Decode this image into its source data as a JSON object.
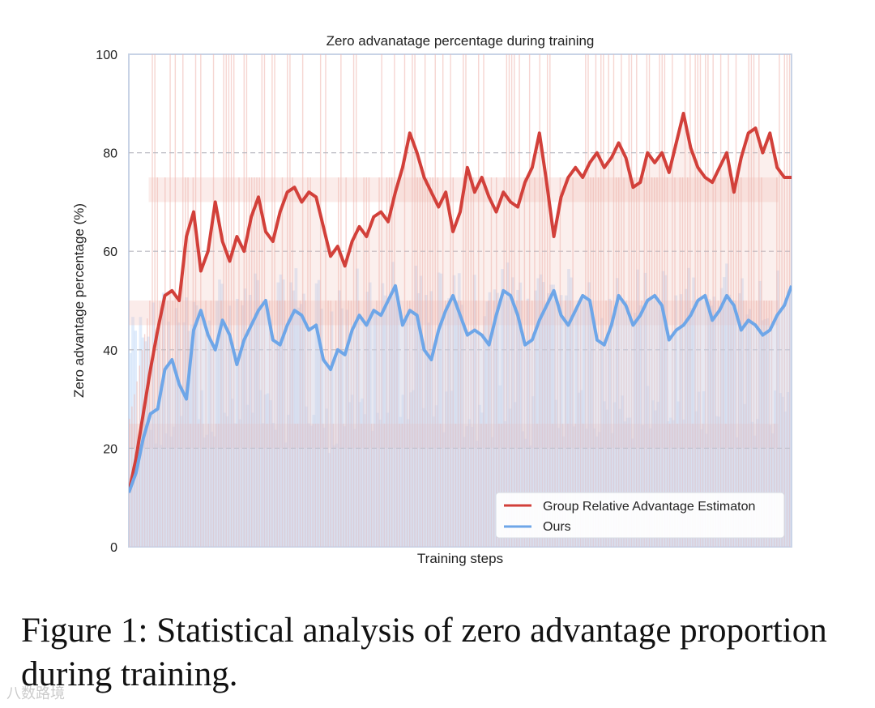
{
  "chart_data": {
    "type": "line",
    "title": "Zero advanatage percentage during training",
    "xlabel": "Training steps",
    "ylabel": "Zero advantage percentage (%)",
    "ylim": [
      0,
      100
    ],
    "yticks": [
      0,
      20,
      40,
      60,
      80,
      100
    ],
    "grid": "horizontal dashed",
    "legend_position": "bottom-right",
    "series": [
      {
        "name": "Group Relative Advantage Estimaton",
        "color": "#d2403a",
        "raw_color": "#efb4ad",
        "smoothed": [
          11,
          18,
          27,
          36,
          44,
          51,
          52,
          50,
          63,
          68,
          56,
          60,
          70,
          62,
          58,
          63,
          60,
          67,
          71,
          64,
          62,
          68,
          72,
          73,
          70,
          72,
          71,
          65,
          59,
          61,
          57,
          62,
          65,
          63,
          67,
          68,
          66,
          72,
          77,
          84,
          80,
          75,
          72,
          69,
          72,
          64,
          68,
          77,
          72,
          75,
          71,
          68,
          72,
          70,
          69,
          74,
          77,
          84,
          74,
          63,
          71,
          75,
          77,
          75,
          78,
          80,
          77,
          79,
          82,
          79,
          73,
          74,
          80,
          78,
          80,
          76,
          82,
          88,
          81,
          77,
          75,
          74,
          77,
          80,
          72,
          79,
          84,
          85,
          80,
          84,
          77,
          75,
          75
        ],
        "raw_levels": [
          25,
          50,
          75,
          100
        ]
      },
      {
        "name": "Ours",
        "color": "#6ea6e8",
        "raw_color": "#c6dcf8",
        "smoothed": [
          11,
          15,
          22,
          27,
          28,
          36,
          38,
          33,
          30,
          44,
          48,
          43,
          40,
          46,
          43,
          37,
          42,
          45,
          48,
          50,
          42,
          41,
          45,
          48,
          47,
          44,
          45,
          38,
          36,
          40,
          39,
          44,
          47,
          45,
          48,
          47,
          50,
          53,
          45,
          48,
          47,
          40,
          38,
          44,
          48,
          51,
          47,
          43,
          44,
          43,
          41,
          47,
          52,
          51,
          47,
          41,
          42,
          46,
          49,
          52,
          47,
          45,
          48,
          51,
          50,
          42,
          41,
          45,
          51,
          49,
          45,
          47,
          50,
          51,
          49,
          42,
          44,
          45,
          47,
          50,
          51,
          46,
          48,
          51,
          49,
          44,
          46,
          45,
          43,
          44,
          47,
          49,
          53
        ],
        "raw_levels": [
          25,
          50
        ]
      }
    ]
  },
  "caption": "Figure 1: Statistical analysis of zero advantage proportion during training.",
  "watermark": "八数路境"
}
